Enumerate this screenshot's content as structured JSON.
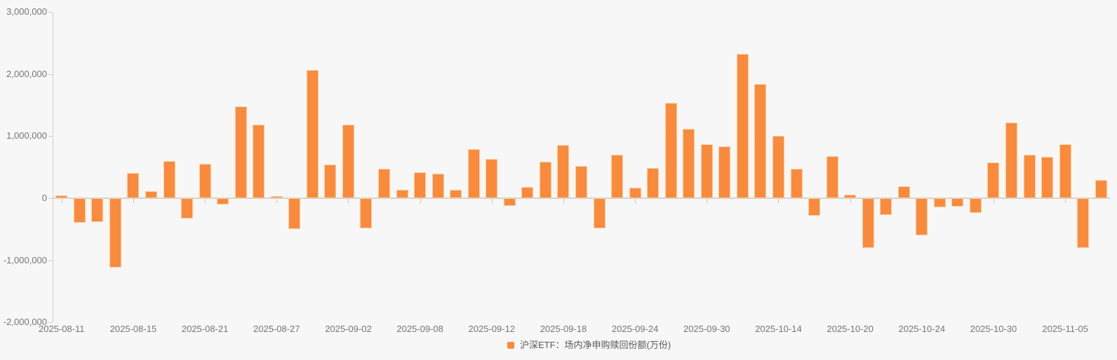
{
  "chart_data": {
    "type": "bar",
    "title": "",
    "xlabel": "",
    "ylabel": "",
    "unit": "万份",
    "ylim": [
      -2000000,
      3000000
    ],
    "grid": false,
    "legend_position": "bottom-center",
    "bar_color": "#fb8b3c",
    "background_color": "#f7f7f7",
    "axis_color": "#cfcfcf",
    "label_color": "#757575",
    "legend": {
      "label": "沪深ETF：场内净申购赎回份额(万份)",
      "color": "#fb8b3c"
    },
    "y_ticks": [
      "3,000,000",
      "2,000,000",
      "1,000,000",
      "0",
      "-1,000,000",
      "-2,000,000"
    ],
    "y_tick_values": [
      3000000,
      2000000,
      1000000,
      0,
      -1000000,
      -2000000
    ],
    "x_tick_labels": [
      "2025-08-11",
      "2025-08-15",
      "2025-08-21",
      "2025-08-27",
      "2025-09-02",
      "2025-09-08",
      "2025-09-12",
      "2025-09-18",
      "2025-09-24",
      "2025-09-30",
      "2025-10-14",
      "2025-10-20",
      "2025-10-24",
      "2025-10-30",
      "2025-11-05"
    ],
    "x_tick_indices": [
      0,
      4,
      8,
      12,
      16,
      20,
      24,
      28,
      32,
      36,
      40,
      44,
      48,
      52,
      56
    ],
    "categories": [
      "2025-08-11",
      "2025-08-12",
      "2025-08-13",
      "2025-08-14",
      "2025-08-15",
      "2025-08-18",
      "2025-08-19",
      "2025-08-20",
      "2025-08-21",
      "2025-08-22",
      "2025-08-25",
      "2025-08-26",
      "2025-08-27",
      "2025-08-28",
      "2025-08-29",
      "2025-09-01",
      "2025-09-02",
      "2025-09-03",
      "2025-09-04",
      "2025-09-05",
      "2025-09-08",
      "2025-09-09",
      "2025-09-10",
      "2025-09-11",
      "2025-09-12",
      "2025-09-15",
      "2025-09-16",
      "2025-09-17",
      "2025-09-18",
      "2025-09-19",
      "2025-09-22",
      "2025-09-23",
      "2025-09-24",
      "2025-09-25",
      "2025-09-26",
      "2025-09-29",
      "2025-09-30",
      "2025-10-09",
      "2025-10-10",
      "2025-10-13",
      "2025-10-14",
      "2025-10-15",
      "2025-10-16",
      "2025-10-17",
      "2025-10-20",
      "2025-10-21",
      "2025-10-22",
      "2025-10-23",
      "2025-10-24",
      "2025-10-27",
      "2025-10-28",
      "2025-10-29",
      "2025-10-30",
      "2025-10-31",
      "2025-11-03",
      "2025-11-04",
      "2025-11-05",
      "2025-11-06",
      "2025-11-07"
    ],
    "series": [
      {
        "name": "沪深ETF：场内净申购赎回份额(万份)",
        "values": [
          50000,
          -400000,
          -380000,
          -1120000,
          410000,
          110000,
          600000,
          -330000,
          550000,
          -100000,
          1480000,
          1190000,
          30000,
          -500000,
          2060000,
          540000,
          1180000,
          -480000,
          470000,
          140000,
          420000,
          400000,
          130000,
          790000,
          630000,
          -120000,
          180000,
          590000,
          860000,
          520000,
          -490000,
          700000,
          170000,
          490000,
          1530000,
          1120000,
          870000,
          840000,
          2320000,
          1840000,
          1010000,
          470000,
          -280000,
          680000,
          60000,
          -800000,
          -270000,
          190000,
          -600000,
          -150000,
          -140000,
          -240000,
          570000,
          1220000,
          700000,
          670000,
          870000,
          -800000,
          290000
        ]
      }
    ]
  }
}
